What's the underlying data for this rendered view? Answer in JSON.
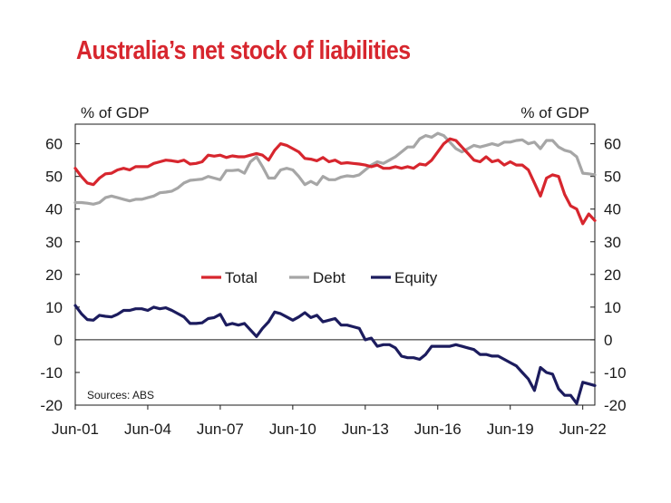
{
  "chart_data": {
    "type": "line",
    "title": "Australia’s net stock of liabilities",
    "y_unit_left": "% of GDP",
    "y_unit_right": "% of GDP",
    "source": "Sources: ABS",
    "ylim": [
      -20,
      66
    ],
    "yticks": [
      -20,
      -10,
      0,
      10,
      20,
      30,
      40,
      50,
      60
    ],
    "xlim": [
      2001.5,
      2022.5
    ],
    "xticks": [
      {
        "x": 2001.5,
        "label": "Jun-01"
      },
      {
        "x": 2004.5,
        "label": "Jun-04"
      },
      {
        "x": 2007.5,
        "label": "Jun-07"
      },
      {
        "x": 2010.5,
        "label": "Jun-10"
      },
      {
        "x": 2013.5,
        "label": "Jun-13"
      },
      {
        "x": 2016.5,
        "label": "Jun-16"
      },
      {
        "x": 2019.5,
        "label": "Jun-19"
      },
      {
        "x": 2022.5,
        "label": "Jun-22"
      }
    ],
    "legend_position": "center",
    "grid": false,
    "series": [
      {
        "name": "Total",
        "color": "#d7262e",
        "points": [
          [
            2001.5,
            52.5
          ],
          [
            2001.75,
            50
          ],
          [
            2002.0,
            48
          ],
          [
            2002.25,
            47.5
          ],
          [
            2002.5,
            49.5
          ],
          [
            2002.75,
            50.8
          ],
          [
            2003.0,
            51
          ],
          [
            2003.25,
            52
          ],
          [
            2003.5,
            52.5
          ],
          [
            2003.75,
            52
          ],
          [
            2004.0,
            53
          ],
          [
            2004.25,
            53
          ],
          [
            2004.5,
            53
          ],
          [
            2004.75,
            54
          ],
          [
            2005.0,
            54.5
          ],
          [
            2005.25,
            55
          ],
          [
            2005.5,
            54.8
          ],
          [
            2005.75,
            54.5
          ],
          [
            2006.0,
            55
          ],
          [
            2006.25,
            53.8
          ],
          [
            2006.5,
            54
          ],
          [
            2006.75,
            54.5
          ],
          [
            2007.0,
            56.5
          ],
          [
            2007.25,
            56.2
          ],
          [
            2007.5,
            56.5
          ],
          [
            2007.75,
            55.8
          ],
          [
            2008.0,
            56.3
          ],
          [
            2008.25,
            56
          ],
          [
            2008.5,
            56
          ],
          [
            2008.75,
            56.5
          ],
          [
            2009.0,
            57
          ],
          [
            2009.25,
            56.5
          ],
          [
            2009.5,
            55
          ],
          [
            2009.75,
            58
          ],
          [
            2010.0,
            60
          ],
          [
            2010.25,
            59.5
          ],
          [
            2010.5,
            58.5
          ],
          [
            2010.75,
            57.5
          ],
          [
            2011.0,
            55.5
          ],
          [
            2011.25,
            55.3
          ],
          [
            2011.5,
            54.8
          ],
          [
            2011.75,
            55.8
          ],
          [
            2012.0,
            54.5
          ],
          [
            2012.25,
            55
          ],
          [
            2012.5,
            54
          ],
          [
            2012.75,
            54.2
          ],
          [
            2013.0,
            54
          ],
          [
            2013.25,
            53.8
          ],
          [
            2013.5,
            53.5
          ],
          [
            2013.75,
            53
          ],
          [
            2014.0,
            53.5
          ],
          [
            2014.25,
            52.5
          ],
          [
            2014.5,
            52.5
          ],
          [
            2014.75,
            53
          ],
          [
            2015.0,
            52.5
          ],
          [
            2015.25,
            53
          ],
          [
            2015.5,
            52.5
          ],
          [
            2015.75,
            53.8
          ],
          [
            2016.0,
            53.5
          ],
          [
            2016.25,
            55
          ],
          [
            2016.5,
            57.5
          ],
          [
            2016.75,
            60
          ],
          [
            2017.0,
            61.5
          ],
          [
            2017.25,
            61
          ],
          [
            2017.5,
            59
          ],
          [
            2017.75,
            57
          ],
          [
            2018.0,
            55
          ],
          [
            2018.25,
            54.5
          ],
          [
            2018.5,
            56
          ],
          [
            2018.75,
            54.5
          ],
          [
            2019.0,
            55
          ],
          [
            2019.25,
            53.5
          ],
          [
            2019.5,
            54.5
          ],
          [
            2019.75,
            53.5
          ],
          [
            2020.0,
            53.5
          ],
          [
            2020.25,
            52
          ],
          [
            2020.5,
            48
          ],
          [
            2020.75,
            44
          ],
          [
            2021.0,
            49.5
          ],
          [
            2021.25,
            50.5
          ],
          [
            2021.5,
            50
          ],
          [
            2021.75,
            44.5
          ],
          [
            2022.0,
            41
          ],
          [
            2022.25,
            40
          ],
          [
            2022.5,
            35.5
          ],
          [
            2022.75,
            38.5
          ],
          [
            2023.0,
            36.5
          ]
        ]
      },
      {
        "name": "Debt",
        "color": "#a6a6a6",
        "points": [
          [
            2001.5,
            42
          ],
          [
            2001.75,
            42
          ],
          [
            2002.0,
            41.8
          ],
          [
            2002.25,
            41.5
          ],
          [
            2002.5,
            42
          ],
          [
            2002.75,
            43.5
          ],
          [
            2003.0,
            44
          ],
          [
            2003.25,
            43.5
          ],
          [
            2003.5,
            43
          ],
          [
            2003.75,
            42.5
          ],
          [
            2004.0,
            43
          ],
          [
            2004.25,
            43
          ],
          [
            2004.5,
            43.5
          ],
          [
            2004.75,
            44
          ],
          [
            2005.0,
            45
          ],
          [
            2005.25,
            45.2
          ],
          [
            2005.5,
            45.5
          ],
          [
            2005.75,
            46.5
          ],
          [
            2006.0,
            48
          ],
          [
            2006.25,
            48.8
          ],
          [
            2006.5,
            49
          ],
          [
            2006.75,
            49.2
          ],
          [
            2007.0,
            50
          ],
          [
            2007.25,
            49.5
          ],
          [
            2007.5,
            49
          ],
          [
            2007.75,
            51.8
          ],
          [
            2008.0,
            51.8
          ],
          [
            2008.25,
            52
          ],
          [
            2008.5,
            51
          ],
          [
            2008.75,
            54.5
          ],
          [
            2009.0,
            56
          ],
          [
            2009.25,
            53
          ],
          [
            2009.5,
            49.5
          ],
          [
            2009.75,
            49.5
          ],
          [
            2010.0,
            52
          ],
          [
            2010.25,
            52.5
          ],
          [
            2010.5,
            52
          ],
          [
            2010.75,
            50
          ],
          [
            2011.0,
            47.5
          ],
          [
            2011.25,
            48.5
          ],
          [
            2011.5,
            47.5
          ],
          [
            2011.75,
            50
          ],
          [
            2012.0,
            49
          ],
          [
            2012.25,
            49
          ],
          [
            2012.5,
            49.8
          ],
          [
            2012.75,
            50.2
          ],
          [
            2013.0,
            50
          ],
          [
            2013.25,
            50.5
          ],
          [
            2013.5,
            52
          ],
          [
            2013.75,
            53.5
          ],
          [
            2014.0,
            54.5
          ],
          [
            2014.25,
            54
          ],
          [
            2014.5,
            55
          ],
          [
            2014.75,
            56
          ],
          [
            2015.0,
            57.5
          ],
          [
            2015.25,
            59
          ],
          [
            2015.5,
            59
          ],
          [
            2015.75,
            61.5
          ],
          [
            2016.0,
            62.5
          ],
          [
            2016.25,
            62
          ],
          [
            2016.5,
            63.2
          ],
          [
            2016.75,
            62.5
          ],
          [
            2017.0,
            60.5
          ],
          [
            2017.25,
            58.5
          ],
          [
            2017.5,
            57.5
          ],
          [
            2017.75,
            58.5
          ],
          [
            2018.0,
            59.5
          ],
          [
            2018.25,
            59
          ],
          [
            2018.5,
            59.5
          ],
          [
            2018.75,
            60
          ],
          [
            2019.0,
            59.5
          ],
          [
            2019.25,
            60.5
          ],
          [
            2019.5,
            60.5
          ],
          [
            2019.75,
            61
          ],
          [
            2020.0,
            61.2
          ],
          [
            2020.25,
            60
          ],
          [
            2020.5,
            60.5
          ],
          [
            2020.75,
            58.5
          ],
          [
            2021.0,
            61
          ],
          [
            2021.25,
            61
          ],
          [
            2021.5,
            59
          ],
          [
            2021.75,
            58
          ],
          [
            2022.0,
            57.5
          ],
          [
            2022.25,
            56
          ],
          [
            2022.5,
            51
          ],
          [
            2022.75,
            50.8
          ],
          [
            2023.0,
            50.5
          ]
        ]
      },
      {
        "name": "Equity",
        "color": "#1c1c5e",
        "points": [
          [
            2001.5,
            10.5
          ],
          [
            2001.75,
            8
          ],
          [
            2002.0,
            6.2
          ],
          [
            2002.25,
            6
          ],
          [
            2002.5,
            7.5
          ],
          [
            2002.75,
            7.2
          ],
          [
            2003.0,
            7
          ],
          [
            2003.25,
            7.8
          ],
          [
            2003.5,
            9
          ],
          [
            2003.75,
            9
          ],
          [
            2004.0,
            9.5
          ],
          [
            2004.25,
            9.5
          ],
          [
            2004.5,
            9
          ],
          [
            2004.75,
            10
          ],
          [
            2005.0,
            9.5
          ],
          [
            2005.25,
            9.8
          ],
          [
            2005.5,
            9
          ],
          [
            2005.75,
            8
          ],
          [
            2006.0,
            7
          ],
          [
            2006.25,
            5
          ],
          [
            2006.5,
            5
          ],
          [
            2006.75,
            5.2
          ],
          [
            2007.0,
            6.5
          ],
          [
            2007.25,
            6.8
          ],
          [
            2007.5,
            7.8
          ],
          [
            2007.75,
            4.5
          ],
          [
            2008.0,
            5
          ],
          [
            2008.25,
            4.5
          ],
          [
            2008.5,
            5
          ],
          [
            2008.75,
            3
          ],
          [
            2009.0,
            1
          ],
          [
            2009.25,
            3.5
          ],
          [
            2009.5,
            5.5
          ],
          [
            2009.75,
            8.5
          ],
          [
            2010.0,
            8
          ],
          [
            2010.25,
            7
          ],
          [
            2010.5,
            6
          ],
          [
            2010.75,
            7
          ],
          [
            2011.0,
            8.3
          ],
          [
            2011.25,
            6.8
          ],
          [
            2011.5,
            7.5
          ],
          [
            2011.75,
            5.5
          ],
          [
            2012.0,
            6
          ],
          [
            2012.25,
            6.5
          ],
          [
            2012.5,
            4.5
          ],
          [
            2012.75,
            4.5
          ],
          [
            2013.0,
            4
          ],
          [
            2013.25,
            3.5
          ],
          [
            2013.5,
            0
          ],
          [
            2013.75,
            0.5
          ],
          [
            2014.0,
            -2
          ],
          [
            2014.25,
            -1.5
          ],
          [
            2014.5,
            -1.5
          ],
          [
            2014.75,
            -2.5
          ],
          [
            2015.0,
            -5
          ],
          [
            2015.25,
            -5.5
          ],
          [
            2015.5,
            -5.5
          ],
          [
            2015.75,
            -6
          ],
          [
            2016.0,
            -4.5
          ],
          [
            2016.25,
            -2
          ],
          [
            2016.5,
            -2
          ],
          [
            2016.75,
            -2
          ],
          [
            2017.0,
            -2
          ],
          [
            2017.25,
            -1.5
          ],
          [
            2017.5,
            -2
          ],
          [
            2017.75,
            -2.5
          ],
          [
            2018.0,
            -3
          ],
          [
            2018.25,
            -4.5
          ],
          [
            2018.5,
            -4.5
          ],
          [
            2018.75,
            -5
          ],
          [
            2019.0,
            -5
          ],
          [
            2019.25,
            -6
          ],
          [
            2019.5,
            -7
          ],
          [
            2019.75,
            -8
          ],
          [
            2020.0,
            -10
          ],
          [
            2020.25,
            -12
          ],
          [
            2020.5,
            -15.5
          ],
          [
            2020.75,
            -8.5
          ],
          [
            2021.0,
            -10
          ],
          [
            2021.25,
            -10.5
          ],
          [
            2021.5,
            -15
          ],
          [
            2021.75,
            -17
          ],
          [
            2022.0,
            -17
          ],
          [
            2022.25,
            -19.5
          ],
          [
            2022.5,
            -13
          ],
          [
            2022.75,
            -13.5
          ],
          [
            2023.0,
            -14
          ]
        ]
      }
    ]
  }
}
